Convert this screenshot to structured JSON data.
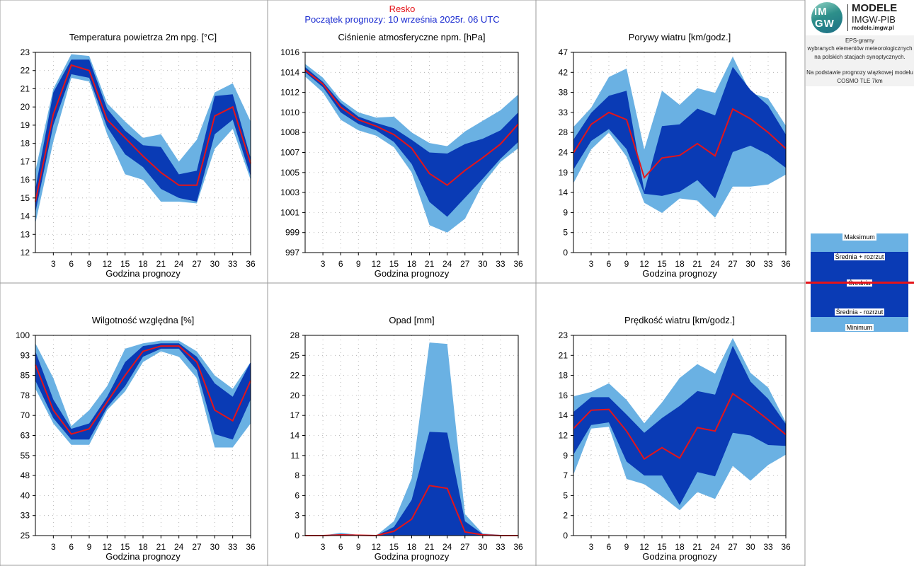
{
  "header": {
    "station": "Resko",
    "forecast_start": "Początek prognozy: 10 września 2025r. 06 UTC"
  },
  "logo": {
    "mark_top": "IM",
    "mark_bottom": "GW",
    "line1": "MODELE",
    "line2": "IMGW-PIB",
    "line3": "modele.imgw.pl"
  },
  "info": {
    "line1": "EPS-gramy",
    "line2": "wybranych elementów meteorologicznych",
    "line3": "na polskich stacjach  synoptycznych.",
    "line4": "Na podstawie prognozy wiązkowej modelu",
    "line5": "COSMO TLE 7km"
  },
  "legend": {
    "max": "Maksimum",
    "mean_plus": "Średnia + rozrzut",
    "mean": "Średnia",
    "mean_minus": "Średnia - rozrzut",
    "min": "Minimum"
  },
  "colors": {
    "outer_band": "#6ab1e3",
    "inner_band": "#0a3bb5",
    "mean_line": "#e4141a",
    "station_text": "#e4141a",
    "start_text": "#1a2bd0"
  },
  "chart_data": [
    {
      "type": "area",
      "title": "Temperatura powietrza 2m npg. [°C]",
      "xlabel": "Godzina prognozy",
      "x": [
        0,
        3,
        6,
        9,
        12,
        15,
        18,
        21,
        24,
        27,
        30,
        33,
        36
      ],
      "xticks": [
        "3",
        "6",
        "9",
        "12",
        "15",
        "18",
        "21",
        "24",
        "27",
        "30",
        "33",
        "36"
      ],
      "ylim": [
        12,
        23
      ],
      "yticks": [
        "12",
        "13",
        "14",
        "15",
        "16",
        "17",
        "18",
        "19",
        "20",
        "21",
        "22",
        "23"
      ],
      "max": [
        16.5,
        21.0,
        22.9,
        22.8,
        20.2,
        19.2,
        18.3,
        18.5,
        17.0,
        18.2,
        20.8,
        21.3,
        19.2
      ],
      "mean_plus": [
        15.5,
        20.8,
        22.6,
        22.6,
        19.9,
        18.7,
        17.9,
        17.8,
        16.3,
        16.5,
        20.6,
        20.7,
        17.2
      ],
      "mean": [
        14.8,
        19.6,
        22.3,
        22.0,
        19.3,
        18.3,
        17.3,
        16.4,
        15.7,
        15.7,
        19.5,
        20.0,
        16.9
      ],
      "mean_minus": [
        14.2,
        19.0,
        21.8,
        21.6,
        18.9,
        17.4,
        16.7,
        15.5,
        15.0,
        14.8,
        18.5,
        19.3,
        16.2
      ],
      "min": [
        13.6,
        18.1,
        21.6,
        21.4,
        18.5,
        16.3,
        16.0,
        14.8,
        14.8,
        14.7,
        17.7,
        18.8,
        16.0
      ]
    },
    {
      "type": "area",
      "title": "Ciśnienie atmosferyczne npm. [hPa]",
      "xlabel": "Godzina prognozy",
      "x": [
        0,
        3,
        6,
        9,
        12,
        15,
        18,
        21,
        24,
        27,
        30,
        33,
        36
      ],
      "xticks": [
        "3",
        "6",
        "9",
        "12",
        "15",
        "18",
        "21",
        "24",
        "27",
        "30",
        "33",
        "36"
      ],
      "ylim": [
        997,
        1016
      ],
      "yticks": [
        "997",
        "999",
        "1001",
        "1003",
        "1005",
        "1007",
        "1008",
        "1010",
        "1012",
        "1014",
        "1016"
      ],
      "max": [
        1014.9,
        1013.6,
        1011.5,
        1010.3,
        1009.8,
        1009.9,
        1008.4,
        1007.4,
        1007.1,
        1008.5,
        1009.5,
        1010.5,
        1012.0
      ],
      "mean_plus": [
        1014.6,
        1013.2,
        1011.2,
        1009.9,
        1009.3,
        1008.8,
        1007.7,
        1006.5,
        1006.4,
        1007.3,
        1007.8,
        1008.6,
        1010.3
      ],
      "mean": [
        1014.3,
        1013.0,
        1010.8,
        1009.6,
        1009.0,
        1008.2,
        1006.9,
        1004.5,
        1003.4,
        1004.8,
        1006.0,
        1007.3,
        1009.2
      ],
      "mean_minus": [
        1014.1,
        1012.7,
        1010.3,
        1009.2,
        1008.6,
        1007.5,
        1005.4,
        1001.8,
        1000.4,
        1002.2,
        1004.0,
        1005.9,
        1007.5
      ],
      "min": [
        1013.7,
        1012.2,
        1009.6,
        1008.6,
        1008.1,
        1007.0,
        1004.6,
        999.6,
        998.9,
        1000.2,
        1003.5,
        1005.6,
        1006.9
      ]
    },
    {
      "type": "area",
      "title": "Porywy wiatru [km/godz.]",
      "xlabel": "Godzina prognozy",
      "x": [
        0,
        3,
        6,
        9,
        12,
        15,
        18,
        21,
        24,
        27,
        30,
        33,
        36
      ],
      "xticks": [
        "3",
        "6",
        "9",
        "12",
        "15",
        "18",
        "21",
        "24",
        "27",
        "30",
        "33",
        "36"
      ],
      "ylim": [
        0,
        47
      ],
      "yticks": [
        "0",
        "5",
        "9",
        "14",
        "19",
        "24",
        "28",
        "33",
        "38",
        "42",
        "47"
      ],
      "max": [
        29.5,
        34.0,
        41.2,
        43.2,
        24.2,
        38.0,
        34.7,
        38.6,
        37.5,
        46.0,
        37.5,
        36.2,
        29.8
      ],
      "mean_plus": [
        26.5,
        32.8,
        36.8,
        38.0,
        14.4,
        29.7,
        30.1,
        33.8,
        32.2,
        43.6,
        38.2,
        34.5,
        27.7
      ],
      "mean": [
        23.4,
        30.1,
        32.9,
        31.2,
        17.6,
        22.2,
        22.8,
        25.6,
        22.7,
        33.7,
        31.4,
        28.2,
        24.4
      ],
      "mean_minus": [
        19.5,
        26.2,
        29.0,
        24.3,
        13.8,
        13.3,
        14.3,
        17.0,
        12.7,
        23.6,
        25.1,
        23.0,
        19.9
      ],
      "min": [
        16.3,
        24.2,
        28.2,
        22.5,
        11.7,
        9.3,
        12.7,
        12.2,
        8.2,
        15.5,
        15.5,
        16.0,
        18.3
      ]
    },
    {
      "type": "area",
      "title": "Wilgotność względna [%]",
      "xlabel": "Godzina prognozy",
      "x": [
        0,
        3,
        6,
        9,
        12,
        15,
        18,
        21,
        24,
        27,
        30,
        33,
        36
      ],
      "xticks": [
        "3",
        "6",
        "9",
        "12",
        "15",
        "18",
        "21",
        "24",
        "27",
        "30",
        "33",
        "36"
      ],
      "ylim": [
        25,
        100
      ],
      "yticks": [
        "25",
        "33",
        "40",
        "48",
        "55",
        "63",
        "70",
        "78",
        "85",
        "93",
        "100"
      ],
      "max": [
        97,
        84,
        66,
        72,
        81,
        95,
        97,
        98,
        98,
        94,
        85,
        80,
        90
      ],
      "mean_plus": [
        94,
        76,
        65,
        67,
        77,
        90,
        96,
        97,
        97,
        92,
        82,
        77,
        90
      ],
      "mean": [
        89,
        72,
        63,
        65,
        75,
        85,
        94,
        96,
        96,
        90,
        72,
        68,
        83
      ],
      "mean_minus": [
        83,
        69,
        61,
        61,
        73,
        81,
        92,
        95,
        95,
        87,
        63,
        61,
        76
      ],
      "min": [
        80,
        67,
        59,
        59,
        72,
        79,
        90,
        94,
        92,
        84,
        58,
        58,
        67
      ]
    },
    {
      "type": "area",
      "title": "Opad [mm]",
      "xlabel": "Godzina prognozy",
      "x": [
        0,
        3,
        6,
        9,
        12,
        15,
        18,
        21,
        24,
        27,
        30,
        33,
        36
      ],
      "xticks": [
        "3",
        "6",
        "9",
        "12",
        "15",
        "18",
        "21",
        "24",
        "27",
        "30",
        "33",
        "36"
      ],
      "ylim": [
        0,
        28
      ],
      "yticks": [
        "0",
        "3",
        "6",
        "8",
        "11",
        "14",
        "17",
        "20",
        "22",
        "25",
        "28"
      ],
      "max": [
        0,
        0,
        0.4,
        0.1,
        0,
        2.0,
        8.0,
        27.0,
        26.8,
        3.0,
        0.3,
        0.1,
        0
      ],
      "mean_plus": [
        0,
        0,
        0.2,
        0.1,
        0,
        1.2,
        5.0,
        14.5,
        14.4,
        2.0,
        0.2,
        0.05,
        0
      ],
      "mean": [
        0,
        0,
        0.1,
        0.05,
        0,
        0.6,
        2.3,
        7.0,
        6.6,
        0.5,
        0.1,
        0,
        0
      ],
      "mean_minus": [
        0,
        0,
        0,
        0,
        0,
        0,
        0,
        0,
        0,
        0,
        0,
        0,
        0
      ],
      "min": [
        0,
        0,
        0,
        0,
        0,
        0,
        0,
        0,
        0,
        0,
        0,
        0,
        0
      ]
    },
    {
      "type": "area",
      "title": "Prędkość wiatru [km/godz.]",
      "xlabel": "Godzina prognozy",
      "x": [
        0,
        3,
        6,
        9,
        12,
        15,
        18,
        21,
        24,
        27,
        30,
        33,
        36
      ],
      "xticks": [
        "3",
        "6",
        "9",
        "12",
        "15",
        "18",
        "21",
        "24",
        "27",
        "30",
        "33",
        "36"
      ],
      "ylim": [
        0,
        23
      ],
      "yticks": [
        "0",
        "2",
        "5",
        "7",
        "9",
        "12",
        "14",
        "16",
        "18",
        "21",
        "23"
      ],
      "max": [
        16.0,
        16.5,
        17.5,
        15.6,
        12.9,
        15.3,
        18.1,
        19.7,
        18.6,
        22.7,
        18.7,
        17.0,
        13.0
      ],
      "mean_plus": [
        14.2,
        15.9,
        15.9,
        13.9,
        11.8,
        13.5,
        14.9,
        16.6,
        16.2,
        21.8,
        17.7,
        15.7,
        12.8
      ],
      "mean": [
        12.3,
        14.4,
        14.5,
        12.0,
        8.8,
        10.1,
        8.9,
        12.4,
        12.0,
        16.3,
        14.9,
        13.3,
        11.6
      ],
      "mean_minus": [
        9.3,
        12.7,
        13.0,
        8.5,
        6.9,
        6.9,
        3.5,
        7.3,
        6.8,
        11.8,
        11.5,
        10.4,
        10.3
      ],
      "min": [
        7.0,
        12.3,
        12.5,
        6.5,
        5.9,
        4.5,
        2.9,
        5.0,
        4.2,
        8.0,
        6.3,
        8.1,
        9.3
      ]
    }
  ]
}
